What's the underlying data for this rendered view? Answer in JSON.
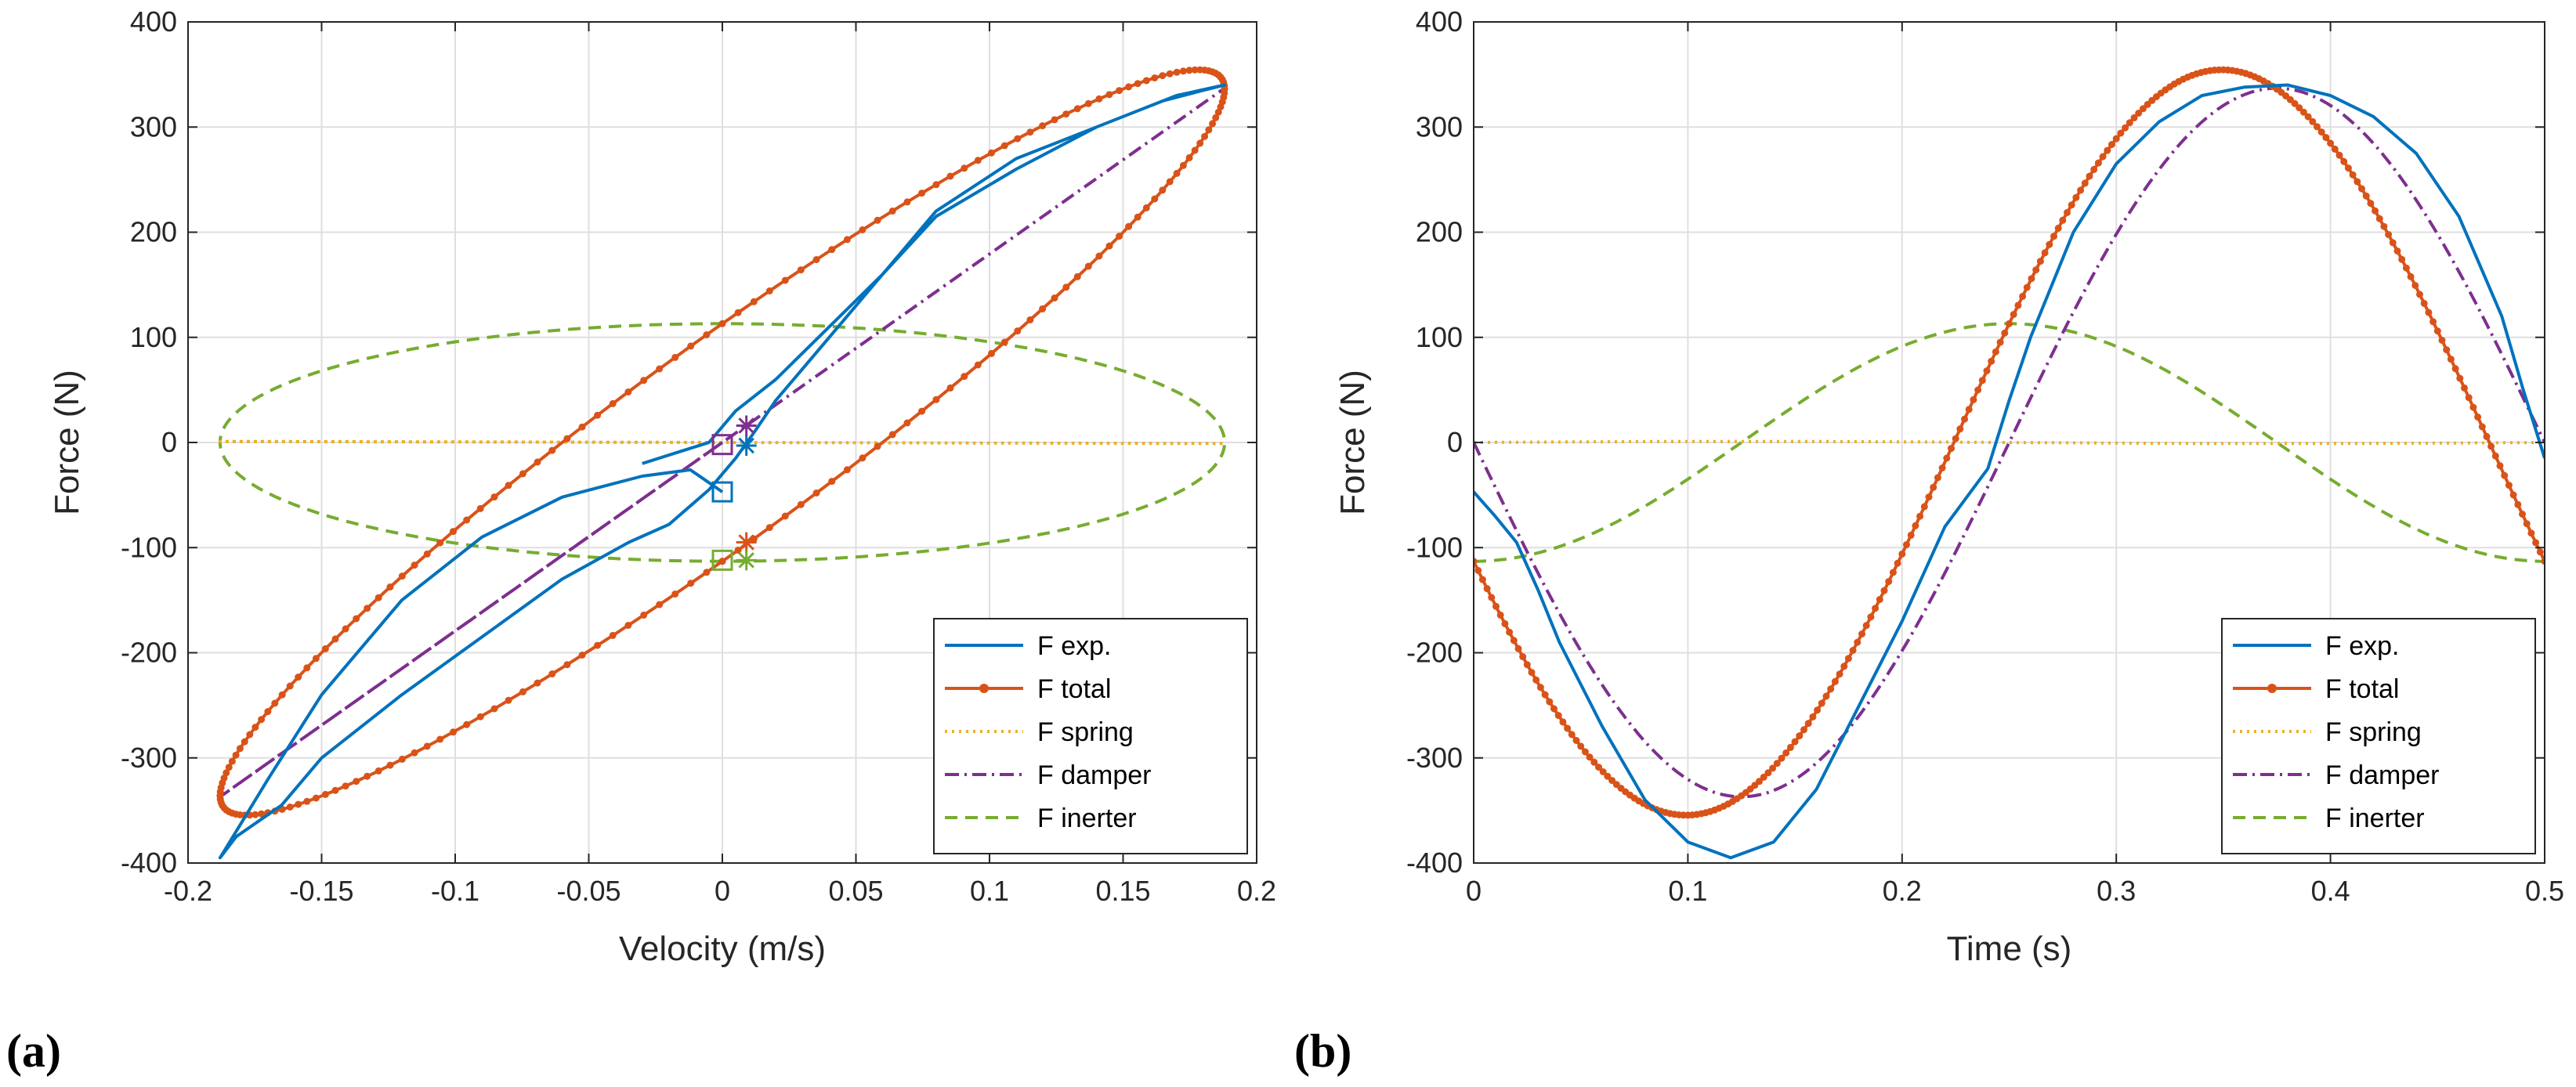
{
  "colors": {
    "exp": "#0072bd",
    "total": "#d95319",
    "spring": "#edb120",
    "damper": "#7e2f8e",
    "inerter": "#77ac30",
    "grid": "#dfdfdf",
    "axis": "#262626"
  },
  "panels": [
    {
      "label": "(a)"
    },
    {
      "label": "(b)"
    }
  ],
  "chart_data": [
    {
      "type": "line",
      "title": "",
      "xlabel": "Velocity (m/s)",
      "ylabel": "Force (N)",
      "xlim": [
        -0.2,
        0.2
      ],
      "ylim": [
        -400,
        400
      ],
      "xticks": [
        -0.2,
        -0.15,
        -0.1,
        -0.05,
        0,
        0.05,
        0.1,
        0.15,
        0.2
      ],
      "xtick_labels": [
        "-0.2",
        "-0.15",
        "-0.1",
        "-0.05",
        "0",
        "0.05",
        "0.1",
        "0.15",
        "0.2"
      ],
      "yticks": [
        -400,
        -300,
        -200,
        -100,
        0,
        100,
        200,
        300,
        400
      ],
      "ytick_labels": [
        "-400",
        "-300",
        "-200",
        "-100",
        "0",
        "100",
        "200",
        "300",
        "400"
      ],
      "grid": true,
      "legend_position": "bottom-right",
      "legend": [
        "F exp.",
        "F total",
        "F spring",
        "F damper",
        "F inerter"
      ],
      "model": {
        "velocity_amplitude": 0.188,
        "period_s": 0.5,
        "damper_force_amplitude": 337,
        "inerter_force_amplitude": 113,
        "spring_force_amplitude": 2
      },
      "series": [
        {
          "name": "F exp.",
          "style": "solid",
          "points": [
            [
              0.0,
              -47
            ],
            [
              -0.012,
              -26
            ],
            [
              -0.03,
              -32
            ],
            [
              -0.06,
              -52
            ],
            [
              -0.09,
              -90
            ],
            [
              -0.12,
              -150
            ],
            [
              -0.15,
              -240
            ],
            [
              -0.17,
              -320
            ],
            [
              -0.182,
              -370
            ],
            [
              -0.188,
              -395
            ],
            [
              -0.182,
              -375
            ],
            [
              -0.165,
              -345
            ],
            [
              -0.15,
              -300
            ],
            [
              -0.12,
              -240
            ],
            [
              -0.09,
              -185
            ],
            [
              -0.06,
              -130
            ],
            [
              -0.035,
              -95
            ],
            [
              -0.02,
              -78
            ],
            [
              -0.005,
              -45
            ],
            [
              0.005,
              -15
            ],
            [
              0.012,
              10
            ],
            [
              0.02,
              40
            ],
            [
              0.04,
              100
            ],
            [
              0.06,
              160
            ],
            [
              0.08,
              215
            ],
            [
              0.11,
              260
            ],
            [
              0.14,
              300
            ],
            [
              0.165,
              325
            ],
            [
              0.18,
              335
            ],
            [
              0.188,
              340
            ],
            [
              0.17,
              330
            ],
            [
              0.14,
              300
            ],
            [
              0.11,
              270
            ],
            [
              0.08,
              220
            ],
            [
              0.06,
              160
            ],
            [
              0.04,
              110
            ],
            [
              0.02,
              60
            ],
            [
              0.005,
              30
            ],
            [
              -0.005,
              0
            ],
            [
              -0.015,
              -8
            ],
            [
              -0.03,
              -20
            ]
          ]
        },
        {
          "name": "F total",
          "style": "solid-dot",
          "generator": "damper+inerter+spring"
        },
        {
          "name": "F spring",
          "style": "dotted",
          "generator": "spring"
        },
        {
          "name": "F damper",
          "style": "dash-dot",
          "generator": "damper"
        },
        {
          "name": "F inerter",
          "style": "dashed",
          "generator": "inerter"
        }
      ],
      "markers": [
        {
          "series": "F exp.",
          "shape": "square",
          "x": 0.0,
          "y": -47
        },
        {
          "series": "F exp.",
          "shape": "asterisk",
          "x": 0.009,
          "y": -3
        },
        {
          "series": "F total",
          "shape": "asterisk",
          "x": 0.009,
          "y": -95
        },
        {
          "series": "F damper",
          "shape": "square",
          "x": 0.0,
          "y": -2
        },
        {
          "series": "F damper",
          "shape": "asterisk",
          "x": 0.009,
          "y": 16
        },
        {
          "series": "F inerter",
          "shape": "square",
          "x": 0.0,
          "y": -112
        },
        {
          "series": "F inerter",
          "shape": "asterisk",
          "x": 0.009,
          "y": -112
        }
      ]
    },
    {
      "type": "line",
      "title": "",
      "xlabel": "Time (s)",
      "ylabel": "Force (N)",
      "xlim": [
        0,
        0.5
      ],
      "ylim": [
        -400,
        400
      ],
      "xticks": [
        0,
        0.1,
        0.2,
        0.3,
        0.4,
        0.5
      ],
      "xtick_labels": [
        "0",
        "0.1",
        "0.2",
        "0.3",
        "0.4",
        "0.5"
      ],
      "yticks": [
        -400,
        -300,
        -200,
        -100,
        0,
        100,
        200,
        300,
        400
      ],
      "ytick_labels": [
        "-400",
        "-300",
        "-200",
        "-100",
        "0",
        "100",
        "200",
        "300",
        "400"
      ],
      "grid": true,
      "legend_position": "bottom-right",
      "legend": [
        "F exp.",
        "F total",
        "F spring",
        "F damper",
        "F inerter"
      ],
      "series": [
        {
          "name": "F exp.",
          "style": "solid",
          "points": [
            [
              0.0,
              -47
            ],
            [
              0.01,
              -70
            ],
            [
              0.02,
              -95
            ],
            [
              0.03,
              -140
            ],
            [
              0.04,
              -190
            ],
            [
              0.06,
              -270
            ],
            [
              0.08,
              -340
            ],
            [
              0.1,
              -380
            ],
            [
              0.12,
              -395
            ],
            [
              0.14,
              -380
            ],
            [
              0.16,
              -330
            ],
            [
              0.18,
              -250
            ],
            [
              0.2,
              -170
            ],
            [
              0.22,
              -80
            ],
            [
              0.24,
              -25
            ],
            [
              0.25,
              40
            ],
            [
              0.26,
              100
            ],
            [
              0.28,
              200
            ],
            [
              0.3,
              265
            ],
            [
              0.32,
              305
            ],
            [
              0.34,
              330
            ],
            [
              0.36,
              338
            ],
            [
              0.38,
              340
            ],
            [
              0.4,
              330
            ],
            [
              0.42,
              310
            ],
            [
              0.44,
              275
            ],
            [
              0.46,
              215
            ],
            [
              0.48,
              120
            ],
            [
              0.49,
              50
            ],
            [
              0.5,
              -15
            ]
          ]
        },
        {
          "name": "F total",
          "style": "solid-dot",
          "generator": "damper+inerter+spring"
        },
        {
          "name": "F spring",
          "style": "dotted",
          "generator": "spring"
        },
        {
          "name": "F damper",
          "style": "dash-dot",
          "generator": "damper"
        },
        {
          "name": "F inerter",
          "style": "dashed",
          "generator": "inerter"
        }
      ]
    }
  ]
}
